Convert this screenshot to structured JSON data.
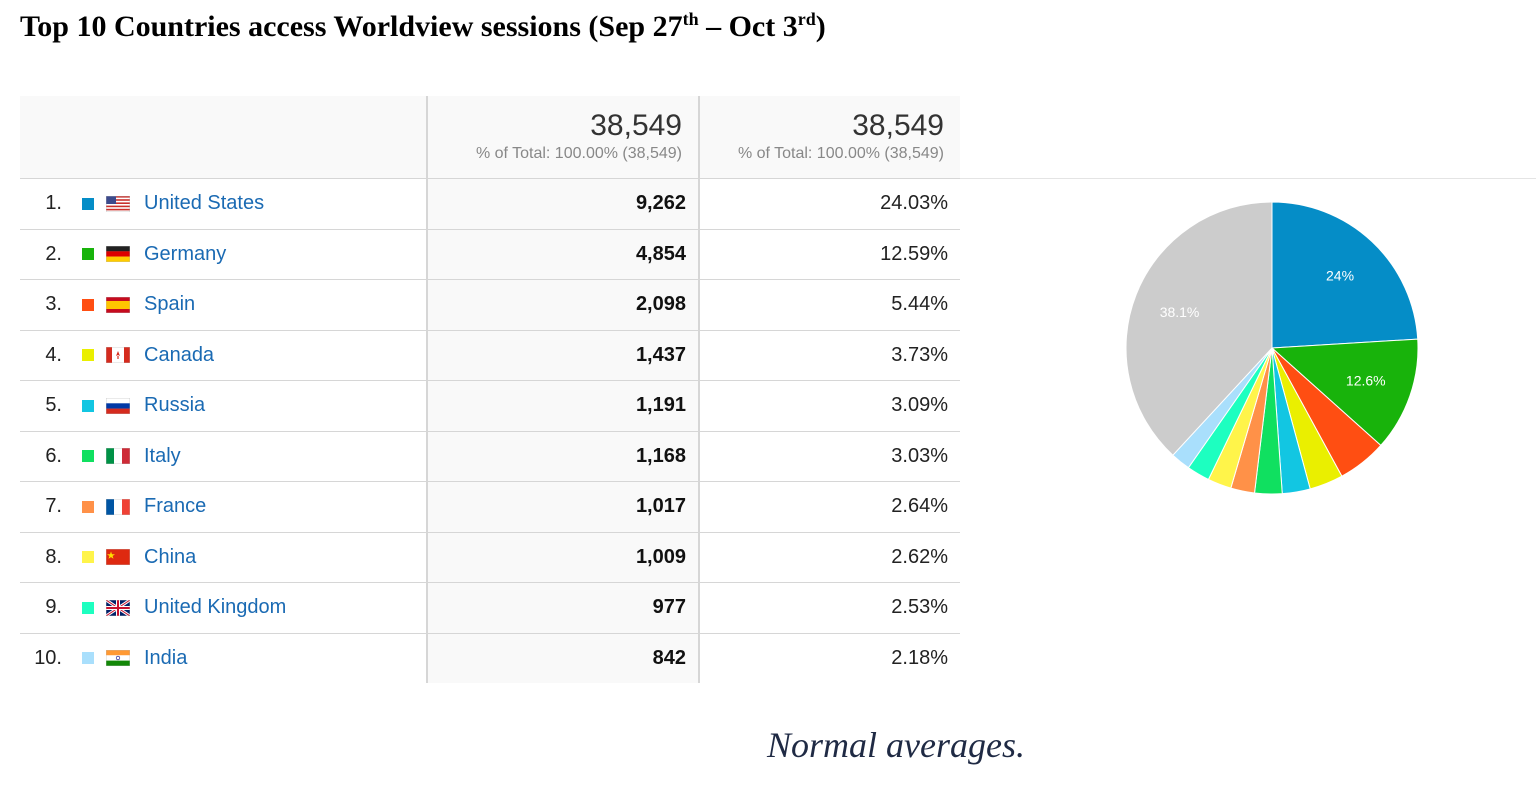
{
  "title": {
    "main": "Top 10 Countries access Worldview sessions (Sep 27",
    "sup1": "th",
    "mid": " – Oct 3",
    "sup2": "rd",
    "end": ")"
  },
  "totals": {
    "sessions": "38,549",
    "sessions_sub": "% of Total: 100.00% (38,549)",
    "percent": "38,549",
    "percent_sub": "% of Total: 100.00% (38,549)"
  },
  "chart_data": {
    "type": "table",
    "rows": [
      {
        "rank": "1.",
        "country": "United States",
        "sessions": "9,262",
        "percent": "24.03%",
        "color": "#058dc7",
        "flag": "us-flag-icon"
      },
      {
        "rank": "2.",
        "country": "Germany",
        "sessions": "4,854",
        "percent": "12.59%",
        "color": "#18b30b",
        "flag": "de-flag-icon"
      },
      {
        "rank": "3.",
        "country": "Spain",
        "sessions": "2,098",
        "percent": "5.44%",
        "color": "#ff4e12",
        "flag": "es-flag-icon"
      },
      {
        "rank": "4.",
        "country": "Canada",
        "sessions": "1,437",
        "percent": "3.73%",
        "color": "#eaef00",
        "flag": "ca-flag-icon"
      },
      {
        "rank": "5.",
        "country": "Russia",
        "sessions": "1,191",
        "percent": "3.09%",
        "color": "#12c6e2",
        "flag": "ru-flag-icon"
      },
      {
        "rank": "6.",
        "country": "Italy",
        "sessions": "1,168",
        "percent": "3.03%",
        "color": "#10e060",
        "flag": "it-flag-icon"
      },
      {
        "rank": "7.",
        "country": "France",
        "sessions": "1,017",
        "percent": "2.64%",
        "color": "#ff9148",
        "flag": "fr-flag-icon"
      },
      {
        "rank": "8.",
        "country": "China",
        "sessions": "1,009",
        "percent": "2.62%",
        "color": "#fff44a",
        "flag": "cn-flag-icon"
      },
      {
        "rank": "9.",
        "country": "United Kingdom",
        "sessions": "977",
        "percent": "2.53%",
        "color": "#1dffc0",
        "flag": "gb-flag-icon"
      },
      {
        "rank": "10.",
        "country": "India",
        "sessions": "842",
        "percent": "2.18%",
        "color": "#a9dffc",
        "flag": "in-flag-icon"
      }
    ],
    "pie": {
      "type": "pie",
      "slices": [
        {
          "name": "United States",
          "value": 24.03,
          "color": "#058dc7",
          "label": "24%"
        },
        {
          "name": "Germany",
          "value": 12.59,
          "color": "#18b30b",
          "label": "12.6%"
        },
        {
          "name": "Spain",
          "value": 5.44,
          "color": "#ff4e12",
          "label": ""
        },
        {
          "name": "Canada",
          "value": 3.73,
          "color": "#eaef00",
          "label": ""
        },
        {
          "name": "Russia",
          "value": 3.09,
          "color": "#12c6e2",
          "label": ""
        },
        {
          "name": "Italy",
          "value": 3.03,
          "color": "#10e060",
          "label": ""
        },
        {
          "name": "France",
          "value": 2.64,
          "color": "#ff9148",
          "label": ""
        },
        {
          "name": "China",
          "value": 2.62,
          "color": "#fff44a",
          "label": ""
        },
        {
          "name": "United Kingdom",
          "value": 2.53,
          "color": "#1dffc0",
          "label": ""
        },
        {
          "name": "India",
          "value": 2.18,
          "color": "#a9dffc",
          "label": ""
        },
        {
          "name": "Other",
          "value": 38.12,
          "color": "#cccccc",
          "label": "38.1%"
        }
      ]
    }
  },
  "caption": "Normal averages."
}
